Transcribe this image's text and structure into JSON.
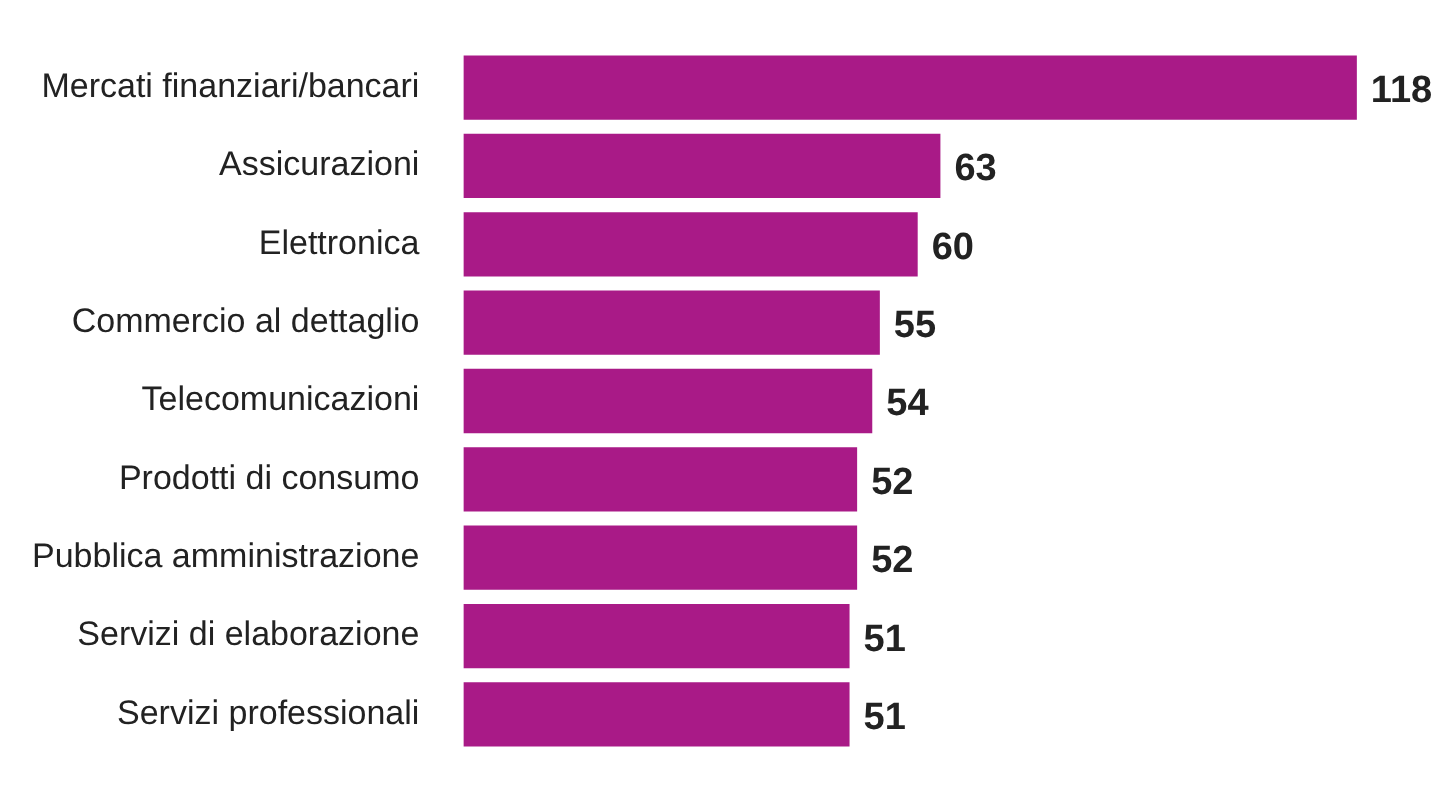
{
  "chart_data": {
    "type": "bar",
    "orientation": "horizontal",
    "categories": [
      "Mercati finanziari/bancari",
      "Assicurazioni",
      "Elettronica",
      "Commercio al dettaglio",
      "Telecomunicazioni",
      "Prodotti di consumo",
      "Pubblica amministrazione",
      "Servizi di elaborazione",
      "Servizi professionali"
    ],
    "values": [
      118,
      63,
      60,
      55,
      54,
      52,
      52,
      51,
      51
    ],
    "color": "#a91a87",
    "data_labels": true,
    "grid": false,
    "legend": false
  }
}
